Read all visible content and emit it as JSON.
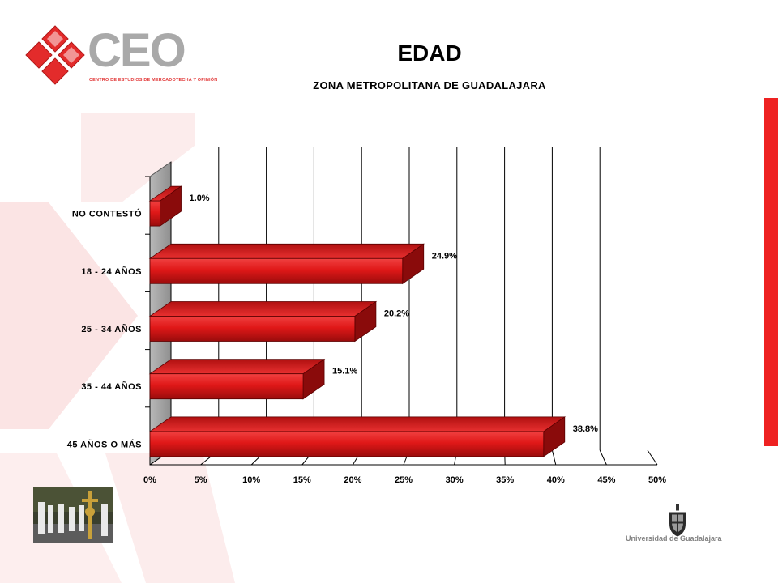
{
  "logo": {
    "text": "CEO",
    "subtitle": "CENTRO DE ESTUDIOS DE MERCADOTECHA Y OPINIÓN"
  },
  "header": {
    "title": "EDAD",
    "subtitle": "ZONA METROPOLITANA DE GUADALAJARA"
  },
  "footer": {
    "university": "Universidad de Guadalajara"
  },
  "colors": {
    "bar": "#e01818",
    "bar_dark": "#8a0b0b",
    "accent": "#ee2222"
  },
  "chart_data": {
    "type": "bar",
    "orientation": "horizontal",
    "title": "EDAD",
    "subtitle": "ZONA METROPOLITANA DE GUADALAJARA",
    "categories": [
      "NO CONTESTÓ",
      "18 - 24 AÑOS",
      "25 - 34 AÑOS",
      "35 - 44 AÑOS",
      "45 AÑOS O MÁS"
    ],
    "values": [
      1.0,
      24.9,
      20.2,
      15.1,
      38.8
    ],
    "value_labels": [
      "1.0%",
      "24.9%",
      "20.2%",
      "15.1%",
      "38.8%"
    ],
    "xlim": [
      0,
      50
    ],
    "x_ticks": [
      "0%",
      "5%",
      "10%",
      "15%",
      "20%",
      "25%",
      "30%",
      "35%",
      "40%",
      "45%",
      "50%"
    ],
    "grid": true,
    "legend": "none"
  }
}
